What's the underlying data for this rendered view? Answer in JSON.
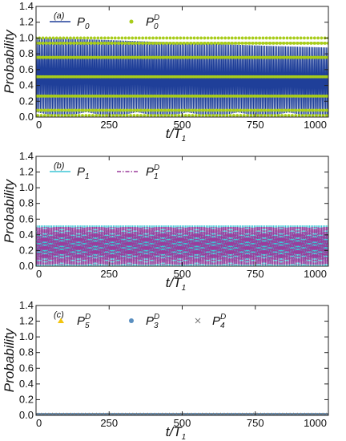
{
  "chart_data": [
    {
      "type": "line",
      "panel_label": "(a)",
      "xlabel": "t/T",
      "xlabel_sub": "1",
      "ylabel": "Probability",
      "xlim": [
        0,
        1000
      ],
      "ylim": [
        0,
        1.4
      ],
      "xticks": [
        0,
        250,
        500,
        750,
        1000
      ],
      "yticks": [
        0.0,
        0.2,
        0.4,
        0.6,
        0.8,
        1.0,
        1.2,
        1.4
      ],
      "series": [
        {
          "name": "P",
          "sub": "0",
          "sup": "",
          "style": "line",
          "color": "#1f3f99",
          "envelope_max": [
            1.0,
            0.98,
            0.96,
            0.94,
            0.92,
            0.9,
            0.88
          ],
          "envelope_x": [
            0,
            200,
            350,
            500,
            650,
            800,
            1000
          ],
          "min": 0.02
        },
        {
          "name": "P",
          "sub": "0",
          "sup": "D",
          "style": "dot",
          "color": "#a8cc1a",
          "envelope_max": [
            1.0,
            1.0
          ],
          "envelope_x": [
            0,
            1000
          ],
          "min": 0.02
        }
      ]
    },
    {
      "type": "line",
      "panel_label": "(b)",
      "xlabel": "t/T",
      "xlabel_sub": "1",
      "ylabel": "Probability",
      "xlim": [
        0,
        1000
      ],
      "ylim": [
        0,
        1.4
      ],
      "xticks": [
        0,
        250,
        500,
        750,
        1000
      ],
      "yticks": [
        0.0,
        0.2,
        0.4,
        0.6,
        0.8,
        1.0,
        1.2,
        1.4
      ],
      "series": [
        {
          "name": "P",
          "sub": "1",
          "sup": "",
          "style": "line",
          "color": "#3cc6d6",
          "envelope_max": [
            0.52,
            0.52
          ],
          "envelope_x": [
            0,
            1000
          ],
          "min": 0.0
        },
        {
          "name": "P",
          "sub": "1",
          "sup": "D",
          "style": "dashdot",
          "color": "#9b3c9b",
          "envelope_max": [
            0.5,
            0.5
          ],
          "envelope_x": [
            0,
            1000
          ],
          "min": 0.02
        }
      ]
    },
    {
      "type": "scatter",
      "panel_label": "(c)",
      "xlabel": "t/T",
      "xlabel_sub": "1",
      "ylabel": "Probability",
      "xlim": [
        0,
        1000
      ],
      "ylim": [
        0,
        1.4
      ],
      "xticks": [
        0,
        250,
        500,
        750,
        1000
      ],
      "yticks": [
        0.0,
        0.2,
        0.4,
        0.6,
        0.8,
        1.0,
        1.2,
        1.4
      ],
      "series": [
        {
          "name": "P",
          "sub": "5",
          "sup": "D",
          "style": "triangle",
          "color": "#f2c40f",
          "value": 0.0
        },
        {
          "name": "P",
          "sub": "3",
          "sup": "D",
          "style": "circle",
          "color": "#5a8fc0",
          "value": 0.005
        },
        {
          "name": "P",
          "sub": "4",
          "sup": "D",
          "style": "cross",
          "color": "#777777",
          "value": 0.005
        }
      ]
    }
  ]
}
